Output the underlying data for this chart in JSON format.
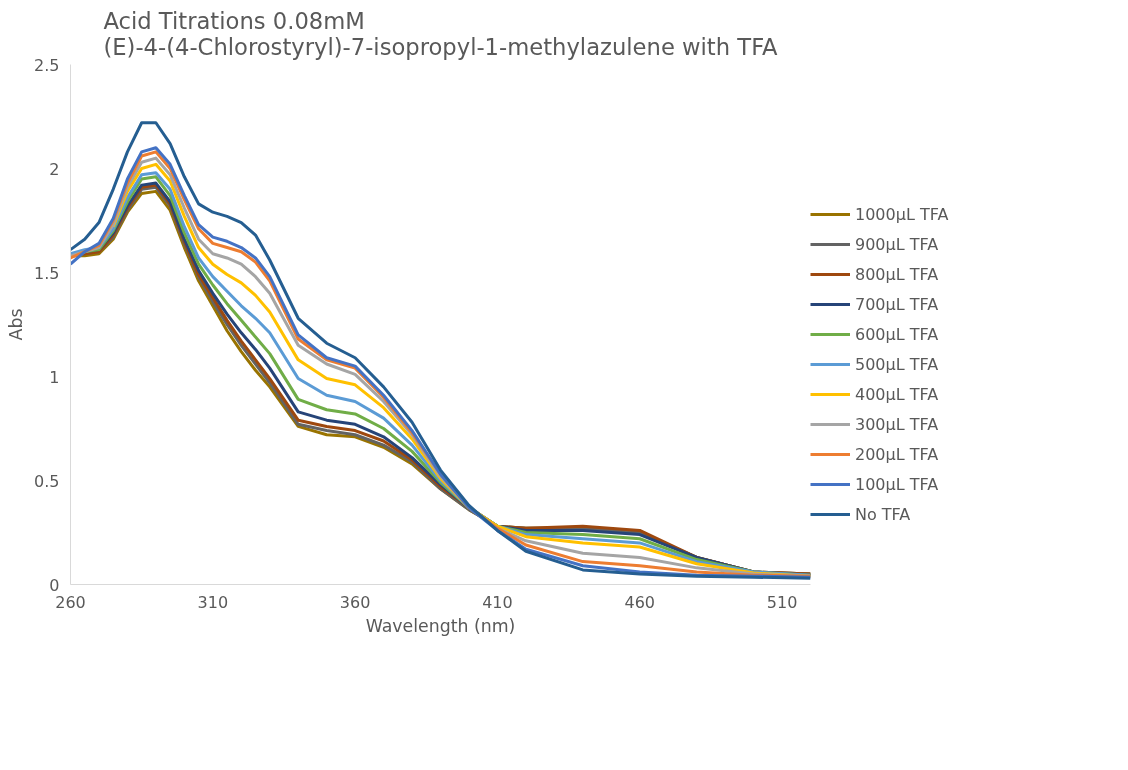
{
  "chart_data": {
    "type": "line",
    "title": "Acid Titrations 0.08mM (E)-4-(4-Chlorostyryl)-7-isopropyl-1-methylazulene with TFA",
    "xlabel": "Wavelength (nm)",
    "ylabel": "Abs",
    "x": [
      260,
      265,
      270,
      275,
      280,
      285,
      290,
      295,
      300,
      305,
      310,
      315,
      320,
      325,
      330,
      340,
      350,
      360,
      370,
      380,
      390,
      400,
      410,
      420,
      440,
      460,
      480,
      500,
      520
    ],
    "xlim": [
      260,
      520
    ],
    "xticks": [
      260,
      310,
      360,
      410,
      460,
      510
    ],
    "ylim": [
      0,
      2.5
    ],
    "yticks": [
      0,
      0.5,
      1,
      1.5,
      2,
      2.5
    ],
    "grid": false,
    "legend": "right",
    "marker": "none",
    "line_style": "solid",
    "series": [
      {
        "name": "1000µL TFA",
        "color": "#997300",
        "values": [
          1.58,
          1.58,
          1.59,
          1.66,
          1.79,
          1.88,
          1.89,
          1.8,
          1.62,
          1.46,
          1.34,
          1.22,
          1.12,
          1.03,
          0.95,
          0.76,
          0.72,
          0.71,
          0.66,
          0.58,
          0.46,
          0.36,
          0.28,
          0.27,
          0.27,
          0.25,
          0.13,
          0.06,
          0.05
        ]
      },
      {
        "name": "900µL TFA",
        "color": "#636363",
        "values": [
          1.58,
          1.59,
          1.6,
          1.67,
          1.8,
          1.9,
          1.91,
          1.82,
          1.64,
          1.48,
          1.36,
          1.25,
          1.15,
          1.06,
          0.97,
          0.77,
          0.74,
          0.72,
          0.67,
          0.59,
          0.46,
          0.36,
          0.28,
          0.27,
          0.27,
          0.25,
          0.13,
          0.06,
          0.05
        ]
      },
      {
        "name": "800µL TFA",
        "color": "#9e480e",
        "values": [
          1.58,
          1.59,
          1.6,
          1.68,
          1.81,
          1.91,
          1.92,
          1.83,
          1.65,
          1.49,
          1.38,
          1.27,
          1.17,
          1.08,
          0.99,
          0.79,
          0.76,
          0.74,
          0.69,
          0.6,
          0.47,
          0.37,
          0.28,
          0.27,
          0.28,
          0.26,
          0.13,
          0.06,
          0.05
        ]
      },
      {
        "name": "700µL TFA",
        "color": "#264478",
        "values": [
          1.58,
          1.6,
          1.61,
          1.69,
          1.82,
          1.92,
          1.93,
          1.84,
          1.66,
          1.51,
          1.4,
          1.3,
          1.21,
          1.13,
          1.04,
          0.83,
          0.79,
          0.77,
          0.71,
          0.61,
          0.48,
          0.37,
          0.28,
          0.26,
          0.26,
          0.24,
          0.13,
          0.06,
          0.045
        ]
      },
      {
        "name": "600µL TFA",
        "color": "#70ad47",
        "values": [
          1.58,
          1.6,
          1.61,
          1.7,
          1.84,
          1.95,
          1.96,
          1.87,
          1.69,
          1.54,
          1.44,
          1.35,
          1.27,
          1.19,
          1.11,
          0.89,
          0.84,
          0.82,
          0.75,
          0.64,
          0.49,
          0.37,
          0.28,
          0.25,
          0.24,
          0.22,
          0.12,
          0.06,
          0.045
        ]
      },
      {
        "name": "500µL TFA",
        "color": "#5b9bd5",
        "values": [
          1.59,
          1.61,
          1.62,
          1.71,
          1.86,
          1.97,
          1.98,
          1.9,
          1.72,
          1.57,
          1.48,
          1.41,
          1.34,
          1.28,
          1.21,
          0.99,
          0.91,
          0.88,
          0.8,
          0.67,
          0.5,
          0.37,
          0.28,
          0.24,
          0.22,
          0.2,
          0.11,
          0.06,
          0.045
        ]
      },
      {
        "name": "400µL TFA",
        "color": "#ffc000",
        "values": [
          null,
          null,
          null,
          1.72,
          1.89,
          2.0,
          2.02,
          1.94,
          1.77,
          1.62,
          1.54,
          1.49,
          1.45,
          1.39,
          1.31,
          1.08,
          0.99,
          0.96,
          0.85,
          0.7,
          0.51,
          0.37,
          0.28,
          0.23,
          0.2,
          0.18,
          0.1,
          0.055,
          0.04
        ]
      },
      {
        "name": "300µL TFA",
        "color": "#a5a5a5",
        "values": [
          1.58,
          1.6,
          1.62,
          1.73,
          1.91,
          2.03,
          2.05,
          1.97,
          1.81,
          1.66,
          1.59,
          1.57,
          1.54,
          1.48,
          1.4,
          1.15,
          1.06,
          1.01,
          0.88,
          0.72,
          0.52,
          0.37,
          0.27,
          0.21,
          0.15,
          0.13,
          0.08,
          0.05,
          0.04
        ]
      },
      {
        "name": "200µL TFA",
        "color": "#ed7d31",
        "values": [
          1.57,
          1.6,
          1.63,
          1.75,
          1.93,
          2.06,
          2.08,
          2.0,
          1.85,
          1.71,
          1.64,
          1.62,
          1.6,
          1.55,
          1.46,
          1.18,
          1.08,
          1.04,
          0.9,
          0.73,
          0.53,
          0.37,
          0.27,
          0.19,
          0.11,
          0.09,
          0.06,
          0.045,
          0.04
        ]
      },
      {
        "name": "100µL TFA",
        "color": "#4472c4",
        "values": [
          1.54,
          1.6,
          1.64,
          1.76,
          1.95,
          2.08,
          2.1,
          2.02,
          1.87,
          1.73,
          1.67,
          1.65,
          1.62,
          1.57,
          1.48,
          1.2,
          1.09,
          1.05,
          0.91,
          0.74,
          0.53,
          0.37,
          0.26,
          0.17,
          0.09,
          0.06,
          0.045,
          0.04,
          0.035
        ]
      },
      {
        "name": "No TFA",
        "color": "#255e91",
        "values": [
          1.61,
          1.66,
          1.74,
          1.9,
          2.08,
          2.22,
          2.22,
          2.12,
          1.96,
          1.83,
          1.79,
          1.77,
          1.74,
          1.68,
          1.56,
          1.28,
          1.16,
          1.09,
          0.95,
          0.78,
          0.55,
          0.38,
          0.26,
          0.16,
          0.07,
          0.05,
          0.04,
          0.035,
          0.03
        ]
      }
    ]
  }
}
